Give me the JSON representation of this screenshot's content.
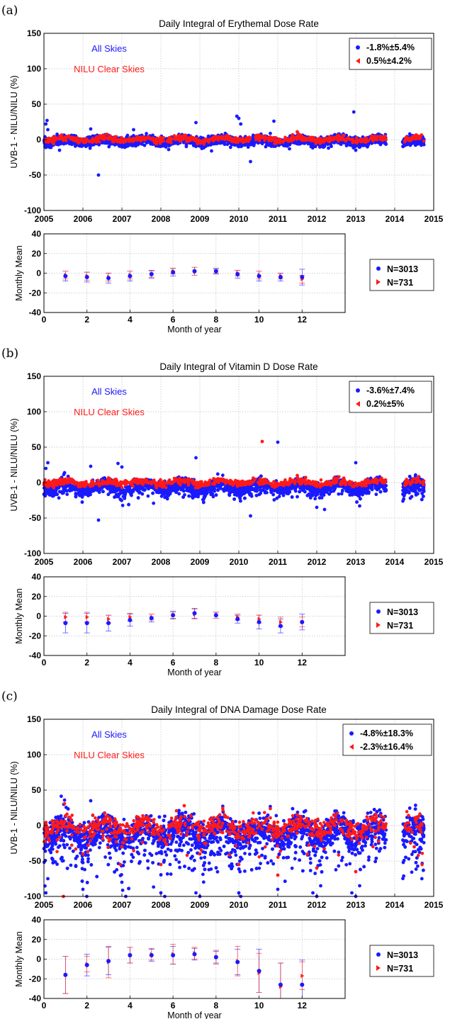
{
  "panels": [
    {
      "letter": "(a)",
      "title": "Daily Integral of Erythemal Dose Rate",
      "ylabel": "UVB-1 - NILU/NILU (%)",
      "annotation_all": "All Skies",
      "annotation_clear": "NILU Clear Skies",
      "legend_all": "-1.8%±5.4%",
      "legend_clear": "0.5%±4.2%",
      "bottom_ylabel": "Monthly Mean",
      "bottom_xlabel": "Month of year",
      "bottom_legend_all": "N=3013",
      "bottom_legend_clear": "N=731"
    },
    {
      "letter": "(b)",
      "title": "Daily Integral of Vitamin D Dose Rate",
      "ylabel": "UVB-1 - NILU/NILU (%)",
      "annotation_all": "All Skies",
      "annotation_clear": "NILU Clear Skies",
      "legend_all": "-3.6%±7.4%",
      "legend_clear": "0.2%±5%",
      "bottom_ylabel": "Monthly Mean",
      "bottom_xlabel": "Month of year",
      "bottom_legend_all": "N=3013",
      "bottom_legend_clear": "N=731"
    },
    {
      "letter": "(c)",
      "title": "Daily Integral of DNA Damage Dose Rate",
      "ylabel": "UVB-1 - NILU/NILU (%)",
      "annotation_all": "All Skies",
      "annotation_clear": "NILU Clear Skies",
      "legend_all": "-4.8%±18.3%",
      "legend_clear": "-2.3%±16.4%",
      "bottom_ylabel": "Monthly Mean",
      "bottom_xlabel": "Month of year",
      "bottom_legend_all": "N=3013",
      "bottom_legend_clear": "N=731"
    }
  ],
  "colors": {
    "all_skies": "#1a1aff",
    "clear_skies": "#ff1a1a",
    "grid": "#bfbfbf"
  },
  "chart_data": [
    {
      "type": "scatter",
      "title": "Daily Integral of Erythemal Dose Rate",
      "ylabel": "UVB-1 - NILU/NILU (%)",
      "xlim": [
        2005,
        2015
      ],
      "ylim": [
        -100,
        150
      ],
      "xticks": [
        "2005",
        "2006",
        "2007",
        "2008",
        "2009",
        "2010",
        "2011",
        "2012",
        "2013",
        "2014",
        "2015"
      ],
      "yticks": [
        "-100",
        "-50",
        "0",
        "50",
        "100",
        "150"
      ],
      "grid": true,
      "legend_position": "top-right",
      "series": [
        {
          "name": "All Skies",
          "legend": "-1.8%±5.4%",
          "mean": -1.8,
          "spread": 5.4,
          "x": [
            2005.05,
            2005.08,
            2005.1,
            2005.4,
            2006.4,
            2006.2,
            2007.3,
            2008.2,
            2008.9,
            2009.3,
            2009.95,
            2010.0,
            2010.05,
            2010.3,
            2010.9,
            2011.3,
            2012.3,
            2012.95,
            2013.0,
            2014.4,
            2014.6
          ],
          "y": [
            22,
            27,
            14,
            -15,
            -50,
            15,
            14,
            -14,
            24,
            -16,
            33,
            30,
            22,
            -31,
            26,
            -13,
            -12,
            39,
            -15,
            -8,
            -6
          ]
        },
        {
          "name": "NILU Clear Skies",
          "legend": "0.5%±4.2%",
          "mean": 0.5,
          "spread": 4.2,
          "x": [
            2005.5,
            2006.5,
            2007.5,
            2008.5,
            2009.5,
            2010.5,
            2011.5,
            2011.6,
            2012.5,
            2013.5,
            2014.5
          ],
          "y": [
            2,
            1,
            2,
            -2,
            3,
            2,
            11,
            6,
            3,
            4,
            5
          ]
        }
      ]
    },
    {
      "type": "scatter",
      "title": "Monthly Mean",
      "xlabel": "Month of year",
      "ylabel": "Monthly Mean",
      "xlim": [
        0,
        14
      ],
      "ylim": [
        -40,
        40
      ],
      "xticks": [
        "0",
        "2",
        "4",
        "6",
        "8",
        "10",
        "12"
      ],
      "yticks": [
        "-40",
        "-20",
        "0",
        "20",
        "40"
      ],
      "grid": true,
      "legend_position": "right",
      "x": [
        1,
        2,
        3,
        4,
        5,
        6,
        7,
        8,
        9,
        10,
        11,
        12
      ],
      "series": [
        {
          "name": "N=3013",
          "values": [
            -3,
            -4,
            -5,
            -3,
            -1,
            1,
            2,
            2,
            -1,
            -3,
            -4,
            -4
          ],
          "error": [
            5,
            5,
            5,
            5,
            4,
            4,
            4,
            3,
            4,
            5,
            4,
            8
          ]
        },
        {
          "name": "N=731",
          "values": [
            -2,
            -3,
            -4,
            -2,
            -1,
            2,
            2,
            2,
            0,
            -2,
            -3,
            -6
          ],
          "error": [
            4,
            4,
            4,
            4,
            3,
            3,
            4,
            2,
            3,
            4,
            3,
            4
          ]
        }
      ]
    },
    {
      "type": "scatter",
      "title": "Daily Integral of Vitamin D Dose Rate",
      "ylabel": "UVB-1 - NILU/NILU (%)",
      "xlim": [
        2005,
        2015
      ],
      "ylim": [
        -100,
        150
      ],
      "xticks": [
        "2005",
        "2006",
        "2007",
        "2008",
        "2009",
        "2010",
        "2011",
        "2012",
        "2013",
        "2014",
        "2015"
      ],
      "yticks": [
        "-100",
        "-50",
        "0",
        "50",
        "100",
        "150"
      ],
      "grid": true,
      "legend_position": "top-right",
      "series": [
        {
          "name": "All Skies",
          "legend": "-3.6%±7.4%",
          "mean": -3.6,
          "spread": 7.4,
          "x": [
            2005.05,
            2005.1,
            2006.4,
            2006.2,
            2006.9,
            2007.0,
            2008.9,
            2010.3,
            2011.0,
            2011.5,
            2012.0,
            2012.2,
            2013.0,
            2013.1,
            2014.4
          ],
          "y": [
            20,
            28,
            -53,
            23,
            27,
            22,
            35,
            -47,
            57,
            -20,
            -35,
            -38,
            28,
            -33,
            -22
          ]
        },
        {
          "name": "NILU Clear Skies",
          "legend": "0.2%±5%",
          "mean": 0.2,
          "spread": 5.0,
          "x": [
            2005.5,
            2006.5,
            2007.5,
            2008.5,
            2009.5,
            2010.6,
            2010.65,
            2011.5,
            2012.5,
            2013.5,
            2014.5
          ],
          "y": [
            0,
            -2,
            1,
            -3,
            2,
            58,
            -1,
            10,
            3,
            4,
            5
          ]
        }
      ]
    },
    {
      "type": "scatter",
      "title": "Monthly Mean",
      "xlabel": "Month of year",
      "ylabel": "Monthly Mean",
      "xlim": [
        0,
        14
      ],
      "ylim": [
        -40,
        40
      ],
      "xticks": [
        "0",
        "2",
        "4",
        "6",
        "8",
        "10",
        "12"
      ],
      "yticks": [
        "-40",
        "-20",
        "0",
        "20",
        "40"
      ],
      "grid": true,
      "legend_position": "right",
      "x": [
        1,
        2,
        3,
        4,
        5,
        6,
        7,
        8,
        9,
        10,
        11,
        12
      ],
      "series": [
        {
          "name": "N=3013",
          "values": [
            -7,
            -7,
            -7,
            -4,
            -2,
            1,
            3,
            1,
            -3,
            -6,
            -10,
            -6
          ],
          "error": [
            10,
            10,
            8,
            6,
            4,
            4,
            5,
            3,
            4,
            7,
            7,
            8
          ]
        },
        {
          "name": "N=731",
          "values": [
            -1,
            -1,
            -3,
            -1,
            -1,
            1,
            2,
            1,
            -1,
            -3,
            -6,
            -6
          ],
          "error": [
            5,
            5,
            4,
            4,
            3,
            3,
            5,
            3,
            3,
            4,
            5,
            5
          ]
        }
      ]
    },
    {
      "type": "scatter",
      "title": "Daily Integral of DNA Damage Dose Rate",
      "ylabel": "UVB-1 - NILU/NILU (%)",
      "xlim": [
        2005,
        2015
      ],
      "ylim": [
        -100,
        150
      ],
      "xticks": [
        "2005",
        "2006",
        "2007",
        "2008",
        "2009",
        "2010",
        "2011",
        "2012",
        "2013",
        "2014",
        "2015"
      ],
      "yticks": [
        "-100",
        "-50",
        "0",
        "50",
        "100",
        "150"
      ],
      "grid": true,
      "legend_position": "top-right",
      "series": [
        {
          "name": "All Skies",
          "legend": "-4.8%±18.3%",
          "mean": -4.8,
          "spread": 18.3,
          "x": [
            2005.05,
            2005.1,
            2006.2,
            2006.0,
            2006.1,
            2007.0,
            2007.1,
            2008.0,
            2008.1,
            2008.9,
            2009.0,
            2010.0,
            2010.05,
            2011.0,
            2011.9,
            2012.0,
            2012.1,
            2012.9,
            2013.0,
            2013.1,
            2014.4
          ],
          "y": [
            -95,
            -75,
            35,
            -90,
            -100,
            -80,
            -100,
            -95,
            -100,
            -95,
            -100,
            -95,
            -100,
            -90,
            -95,
            -100,
            -85,
            -95,
            -100,
            -85,
            8
          ]
        },
        {
          "name": "NILU Clear Skies",
          "legend": "-2.3%±16.4%",
          "mean": -2.3,
          "spread": 16.4,
          "x": [
            2005.5,
            2006.0,
            2006.5,
            2007.0,
            2007.5,
            2008.0,
            2008.6,
            2009.0,
            2009.5,
            2010.0,
            2010.6,
            2011.0,
            2011.5,
            2012.0,
            2012.5,
            2013.0,
            2013.5,
            2014.5
          ],
          "y": [
            -100,
            -40,
            5,
            -30,
            0,
            -55,
            28,
            -40,
            5,
            -55,
            -5,
            -70,
            15,
            -60,
            8,
            -65,
            10,
            -30
          ]
        }
      ]
    },
    {
      "type": "scatter",
      "title": "Monthly Mean",
      "xlabel": "Month of year",
      "ylabel": "Monthly Mean",
      "xlim": [
        0,
        14
      ],
      "ylim": [
        -40,
        40
      ],
      "xticks": [
        "0",
        "2",
        "4",
        "6",
        "8",
        "10",
        "12"
      ],
      "yticks": [
        "-40",
        "-20",
        "0",
        "20",
        "40"
      ],
      "grid": true,
      "legend_position": "right",
      "x": [
        1,
        2,
        3,
        4,
        5,
        6,
        7,
        8,
        9,
        10,
        11,
        12
      ],
      "series": [
        {
          "name": "N=3013",
          "values": [
            -16,
            -6,
            -2,
            4,
            4,
            4,
            5,
            2,
            -3,
            -12,
            -26,
            -26
          ],
          "error": [
            19,
            11,
            14,
            8,
            6,
            9,
            6,
            6,
            13,
            22,
            22,
            25
          ]
        },
        {
          "name": "N=731",
          "values": [
            -16,
            -5,
            -3,
            4,
            5,
            5,
            6,
            2,
            -2,
            -14,
            -28,
            -17
          ],
          "error": [
            19,
            8,
            16,
            8,
            6,
            10,
            6,
            7,
            15,
            20,
            24,
            14
          ]
        }
      ]
    }
  ]
}
